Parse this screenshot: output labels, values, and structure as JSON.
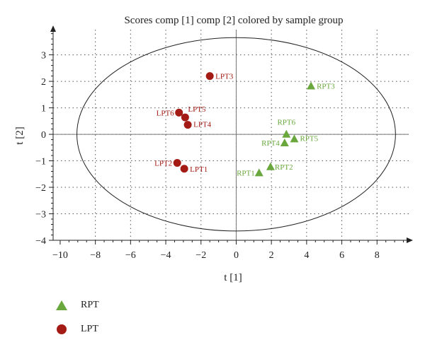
{
  "chart_data": {
    "type": "scatter",
    "title": "Scores comp [1] comp [2] colored by sample group",
    "xlabel": "t [1]",
    "ylabel": "t [2]",
    "xlim": [
      -10.4,
      9.8
    ],
    "ylim": [
      -4.0,
      3.95
    ],
    "x_ticks": [
      -10,
      -8,
      -6,
      -4,
      -2,
      0,
      2,
      4,
      6,
      8
    ],
    "y_ticks": [
      -4,
      -3,
      -2,
      -1,
      0,
      1,
      2,
      3
    ],
    "x_tick_labels": [
      "−10",
      "−8",
      "−6",
      "−4",
      "−2",
      "0",
      "2",
      "4",
      "6",
      "8"
    ],
    "y_tick_labels": [
      "−4",
      "−3",
      "−2",
      "−1",
      "0",
      "1",
      "2",
      "3"
    ],
    "grid": "dotted",
    "legend_position": "bottom-left",
    "ellipse": {
      "center": [
        0,
        0
      ],
      "rx": 9.05,
      "ry": 3.65
    },
    "series": [
      {
        "name": "RPT",
        "marker": "triangle",
        "color": "#6aa83e",
        "points": [
          {
            "label": "RPT1",
            "x": 1.3,
            "y": -1.45
          },
          {
            "label": "RPT2",
            "x": 1.95,
            "y": -1.22
          },
          {
            "label": "RPT3",
            "x": 4.25,
            "y": 1.83
          },
          {
            "label": "RPT4",
            "x": 2.75,
            "y": -0.32
          },
          {
            "label": "RPT5",
            "x": 3.3,
            "y": -0.17
          },
          {
            "label": "RPT6",
            "x": 2.85,
            "y": 0.01
          }
        ]
      },
      {
        "name": "LPT",
        "marker": "circle",
        "color": "#a31b14",
        "points": [
          {
            "label": "LPT1",
            "x": -2.95,
            "y": -1.3
          },
          {
            "label": "LPT2",
            "x": -3.35,
            "y": -1.08
          },
          {
            "label": "LPT3",
            "x": -1.5,
            "y": 2.2
          },
          {
            "label": "LPT4",
            "x": -2.75,
            "y": 0.36
          },
          {
            "label": "LPT5",
            "x": -2.9,
            "y": 0.64
          },
          {
            "label": "LPT6",
            "x": -3.25,
            "y": 0.82
          }
        ]
      }
    ]
  }
}
